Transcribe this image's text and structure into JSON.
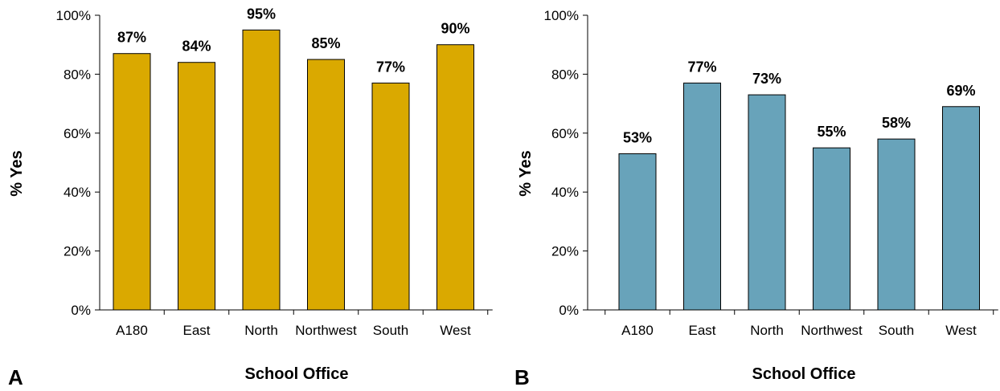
{
  "chart_data": [
    {
      "type": "bar",
      "panel_label": "A",
      "categories": [
        "A180",
        "East",
        "North",
        "Northwest",
        "South",
        "West"
      ],
      "values": [
        87,
        84,
        95,
        85,
        77,
        90
      ],
      "data_labels": [
        "87%",
        "84%",
        "95%",
        "85%",
        "77%",
        "90%"
      ],
      "xlabel": "School Office",
      "ylabel": "% Yes",
      "ylim": [
        0,
        100
      ],
      "yticks": [
        "0%",
        "20%",
        "40%",
        "60%",
        "80%",
        "100%"
      ],
      "bar_color": "#DAA900",
      "grid": false,
      "legend": "none"
    },
    {
      "type": "bar",
      "panel_label": "B",
      "categories": [
        "A180",
        "East",
        "North",
        "Northwest",
        "South",
        "West"
      ],
      "values": [
        53,
        77,
        73,
        55,
        58,
        69
      ],
      "data_labels": [
        "53%",
        "77%",
        "73%",
        "55%",
        "58%",
        "69%"
      ],
      "xlabel": "School Office",
      "ylabel": "% Yes",
      "ylim": [
        0,
        100
      ],
      "yticks": [
        "0%",
        "20%",
        "40%",
        "60%",
        "80%",
        "100%"
      ],
      "bar_color": "#68A3BA",
      "grid": false,
      "legend": "none"
    }
  ]
}
